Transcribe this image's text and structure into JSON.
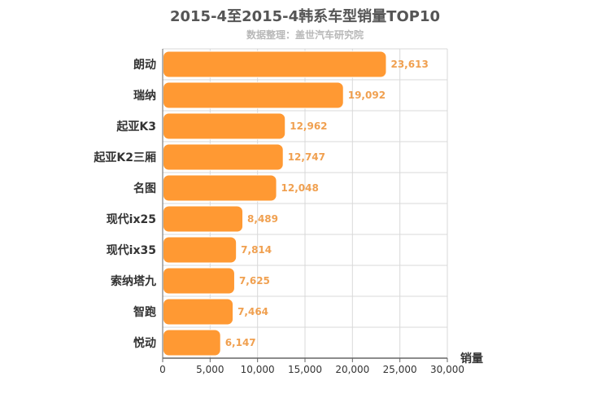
{
  "chart_data": {
    "type": "bar",
    "orientation": "horizontal",
    "title": "2015-4至2015-4韩系车型销量TOP10",
    "subtitle": "数据整理：盖世汽车研究院",
    "xlabel": "销量",
    "ylabel": "",
    "categories": [
      "朗动",
      "瑞纳",
      "起亚K3",
      "起亚K2三厢",
      "名图",
      "现代ix25",
      "现代ix35",
      "索纳塔九",
      "智跑",
      "悦动"
    ],
    "values": [
      23613,
      19092,
      12962,
      12747,
      12048,
      8489,
      7814,
      7625,
      7464,
      6147
    ],
    "value_labels": [
      "23,613",
      "19,092",
      "12,962",
      "12,747",
      "12,048",
      "8,489",
      "7,814",
      "7,625",
      "7,464",
      "6,147"
    ],
    "xlim": [
      0,
      30000
    ],
    "xticks": [
      0,
      5000,
      10000,
      15000,
      20000,
      25000,
      30000
    ],
    "xtick_labels": [
      "0",
      "5,000",
      "10,000",
      "15,000",
      "20,000",
      "25,000",
      "30,000"
    ],
    "grid": true,
    "colors": {
      "bar": "#FF9933",
      "bar_edge": "#ffffff",
      "value_label": "#F0A050",
      "grid": "#d9d9d9",
      "axis": "#666666",
      "text": "#333333"
    }
  }
}
